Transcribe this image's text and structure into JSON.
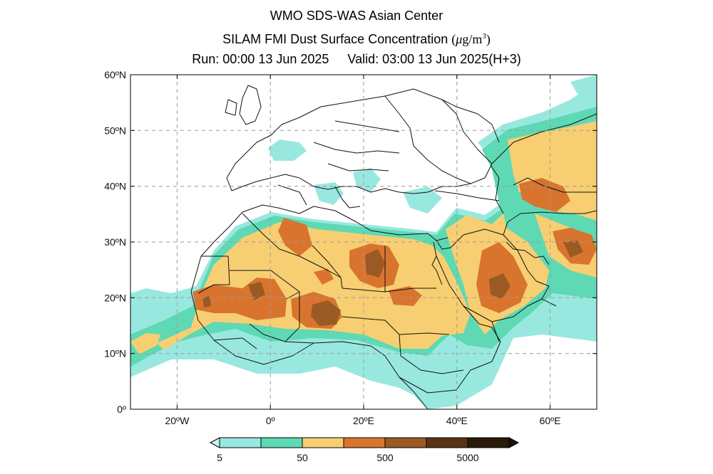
{
  "header": {
    "line1": "WMO SDS-WAS Asian Center",
    "line2_text": "SILAM FMI Dust Surface Concentration",
    "line2_unit_open": "(",
    "line2_unit_mu": "μ",
    "line2_unit_rest": "g/m",
    "line2_unit_sup": "3",
    "line2_unit_close": ")",
    "run_label": "Run: 00:00 13 Jun 2025",
    "valid_label": "Valid: 03:00 13 Jun 2025(H+3)"
  },
  "map": {
    "lon_range": [
      -30,
      70
    ],
    "lat_range": [
      0,
      60
    ],
    "lat_ticks": [
      "0º",
      "10ºN",
      "20ºN",
      "30ºN",
      "40ºN",
      "50ºN",
      "60ºN"
    ],
    "lon_ticks": [
      "20ºW",
      "0º",
      "20ºE",
      "40ºE",
      "60ºE"
    ],
    "gridlines": "dashed",
    "background": "#ffffff"
  },
  "colorbar": {
    "labels": [
      "5",
      "50",
      "500",
      "5000"
    ],
    "colors": [
      "#98e8e0",
      "#5ed9b4",
      "#f7cf72",
      "#d9742f",
      "#9a5a24",
      "#5a3414",
      "#2a1a0a"
    ],
    "min_extend_color": "#c8f3ee",
    "max_extend_color": "#1a120a"
  }
}
